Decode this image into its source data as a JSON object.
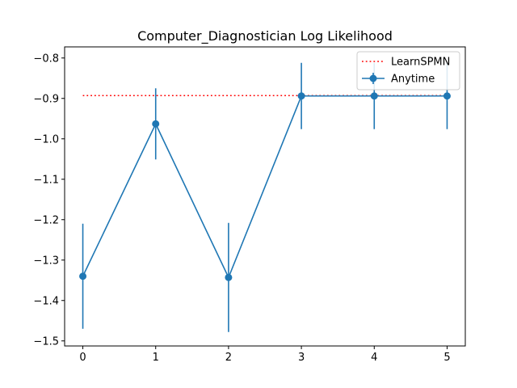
{
  "chart_data": {
    "type": "line",
    "title": "Computer_Diagnostician Log Likelihood",
    "xlabel": "",
    "ylabel": "",
    "x": [
      0,
      1,
      2,
      3,
      4,
      5
    ],
    "xlim": [
      -0.25,
      5.25
    ],
    "ylim": [
      -1.5125,
      -0.7725
    ],
    "xticks": [
      0,
      1,
      2,
      3,
      4,
      5
    ],
    "xtick_labels": [
      "0",
      "1",
      "2",
      "3",
      "4",
      "5"
    ],
    "yticks": [
      -0.8,
      -0.9,
      -1.0,
      -1.1,
      -1.2,
      -1.3,
      -1.4,
      -1.5
    ],
    "ytick_labels": [
      "−0.8",
      "−0.9",
      "−1.0",
      "−1.1",
      "−1.2",
      "−1.3",
      "−1.4",
      "−1.5"
    ],
    "grid": false,
    "legend_position": "top-right",
    "series": [
      {
        "name": "LearnSPMN",
        "style": "dotted",
        "color": "#ff0000",
        "values": [
          -0.893,
          -0.893,
          -0.893,
          -0.893,
          -0.893,
          -0.893
        ]
      },
      {
        "name": "Anytime",
        "style": "solid-markers-errorbars",
        "color": "#1f77b4",
        "values": [
          -1.34,
          -0.963,
          -1.343,
          -0.894,
          -0.894,
          -0.894
        ],
        "error": [
          0.13,
          0.088,
          0.135,
          0.082,
          0.082,
          0.082
        ]
      }
    ]
  }
}
